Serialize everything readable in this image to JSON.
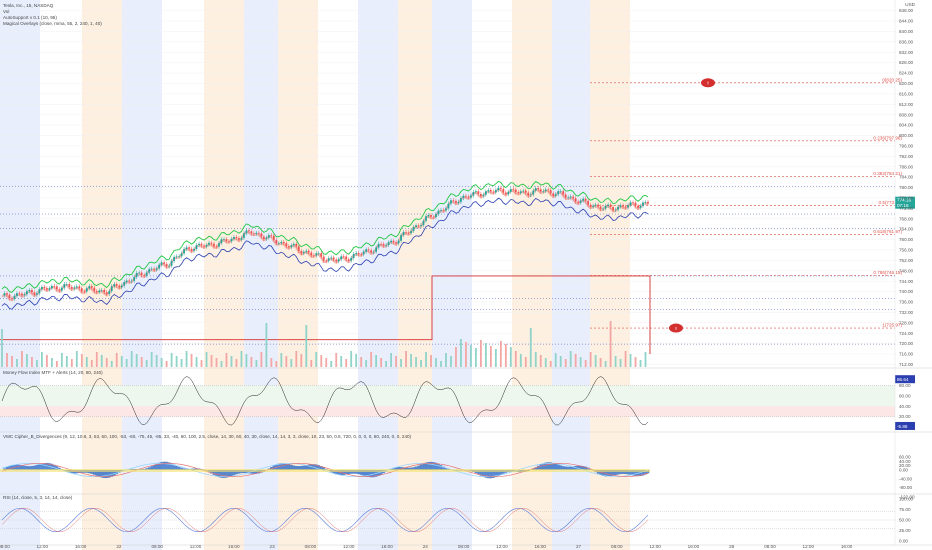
{
  "header": {
    "symbol_line": "Tesla, Inc., 15, NASDAQ",
    "studies": [
      "Vol",
      "AutoSupport v 0.1 (10, 95)",
      "Magical Overlays (close, mma, 55, 2, 240, 1, 40)"
    ]
  },
  "panes": {
    "mfi_title": "Money Flow Index MTF + Alerts (14, 20, 80, 240)",
    "vmc_title": "VMC Cipher_B_Divergences (9, 12, 10.8, 3, 53, 60, 100, -53, -60, -75, 45, -65, 33, -40, 60, 100, 2.5, close, 14, 30, 60, 40, 30, close, 14, 14, 3, 3, close, 10, 23, 50, 0.5, 720, 0, 0, 0, 0, 60, 240, 0, 0, 240)",
    "rsi_title": "RSI (14, close, 5, 3, 14, 14, close)"
  },
  "colors": {
    "up_candle": "#26a69a",
    "down_candle": "#ef5350",
    "green_line": "#22c744",
    "blue_line": "#2b3fb0",
    "red_line": "#d32f2f",
    "fib_line": "#e0514a",
    "session_orange": "#fdf0e0",
    "session_blue": "#e8eefc",
    "price_tag": "#26a69a"
  },
  "chart_data": {
    "type": "candlestick",
    "price_axis": {
      "ticks": [
        "848.00",
        "844.00",
        "840.00",
        "836.00",
        "832.00",
        "828.00",
        "824.00",
        "820.00",
        "816.00",
        "812.00",
        "808.00",
        "804.00",
        "800.00",
        "796.00",
        "792.00",
        "788.00",
        "784.00",
        "780.00",
        "776.00",
        "772.00",
        "768.00",
        "764.00",
        "760.00",
        "756.00",
        "752.00",
        "748.00",
        "744.00",
        "740.00",
        "736.00",
        "732.00",
        "728.00",
        "724.00",
        "720.00",
        "716.00",
        "712.00"
      ],
      "range": [
        711,
        849
      ],
      "currency": "USD"
    },
    "time_axis": {
      "labels": [
        "08:00",
        "12:00",
        "16:00",
        "22",
        "08:00",
        "12:00",
        "16:00",
        "23",
        "08:00",
        "12:00",
        "16:00",
        "24",
        "08:00",
        "12:00",
        "16:00",
        "27",
        "08:00",
        "12:00",
        "16:00",
        "28",
        "08:00",
        "12:00",
        "16:00"
      ]
    },
    "current_price": {
      "value": "774.16",
      "countdown": "07:16"
    },
    "fib_levels": [
      {
        "label": "0(820.25)",
        "price": 820.25
      },
      {
        "label": "0.236(797.96)",
        "price": 797.96
      },
      {
        "label": "0.382(784.21)",
        "price": 784.21
      },
      {
        "label": "0.5(773.09)",
        "price": 773.09
      },
      {
        "label": "0.618(761.97)",
        "price": 761.97
      },
      {
        "label": "0.786(746.15)",
        "price": 746.15
      },
      {
        "label": "1(725.97)",
        "price": 725.97
      }
    ],
    "alerts": [
      "!",
      "!"
    ],
    "mfi": {
      "ticks": [
        "80.00",
        "60.00",
        "40.00",
        "20.00"
      ],
      "value_tag": "86.64",
      "value_tag2": "-5.88",
      "levels": [
        80,
        20
      ]
    },
    "vmc": {
      "ticks": [
        "60.00",
        "40.00",
        "20.00",
        "0.00",
        "-40.00",
        "-80.00",
        "-122.00"
      ]
    },
    "rsi": {
      "ticks": [
        "100.00",
        "75.00",
        "50.00",
        "25.00",
        "0.00"
      ],
      "levels": [
        70,
        50,
        30
      ]
    }
  }
}
